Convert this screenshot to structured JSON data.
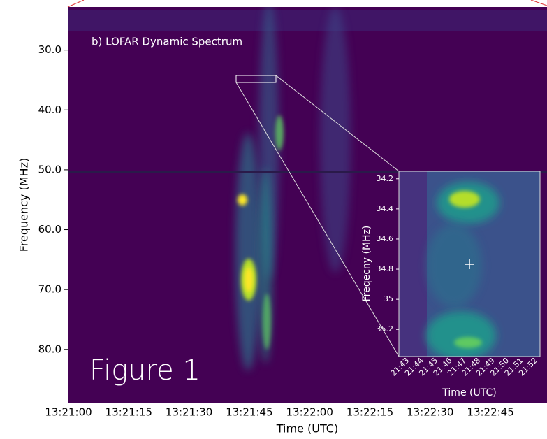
{
  "chart_data": {
    "type": "heatmap",
    "title": "b) LOFAR Dynamic Spectrum",
    "annotation": "Figure 1",
    "xlabel": "Time (UTC)",
    "ylabel": "Frequency (MHz)",
    "xticks": [
      "13:21:00",
      "13:21:15",
      "13:21:30",
      "13:21:45",
      "13:22:00",
      "13:22:15",
      "13:22:30",
      "13:22:45"
    ],
    "ylim": [
      22.8,
      88.9
    ],
    "y_inverted": true,
    "yticks": [
      {
        "value": 30,
        "label": "30.0"
      },
      {
        "value": 40,
        "label": "40.0"
      },
      {
        "value": 50,
        "label": "50.0"
      },
      {
        "value": 60,
        "label": "60.0"
      },
      {
        "value": 70,
        "label": "70.0"
      },
      {
        "value": 80,
        "label": "80.0"
      }
    ],
    "inset": {
      "xlabel": "Time (UTC)",
      "ylabel": "Freqecny (MHz)",
      "xticks": [
        "21:43",
        "21:44",
        "21:45",
        "21:46",
        "21:47",
        "21:48",
        "21:49",
        "21:50",
        "21:51",
        "21:52"
      ],
      "ylim": [
        34.15,
        35.38
      ],
      "y_inverted": true,
      "yticks": [
        34.2,
        34.4,
        34.6,
        34.8,
        35.0,
        35.2
      ]
    }
  }
}
